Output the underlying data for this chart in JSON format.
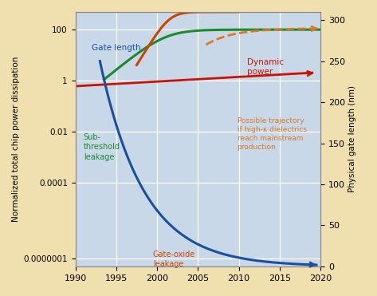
{
  "ylabel_left": "Normalized total chip power dissipation",
  "ylabel_right": "Physical gate length (nm)",
  "background_color": "#c8d8e8",
  "outer_background": "#f0e0b0",
  "grid_color": "#ffffff",
  "colors": {
    "gate_length_blue": "#1a4fa0",
    "subthreshold_green": "#1a8a2a",
    "gate_oxide_orange": "#cc4400",
    "dynamic_red": "#cc1100",
    "trajectory_dashed": "#dd7722"
  },
  "yticks_left_labels": [
    "0.0000001",
    "0.0001",
    "0.01",
    "1",
    "100"
  ],
  "yticks_left_vals": [
    1e-07,
    0.0001,
    0.01,
    1,
    100
  ],
  "yticks_right": [
    0,
    50,
    100,
    150,
    200,
    250,
    300
  ]
}
